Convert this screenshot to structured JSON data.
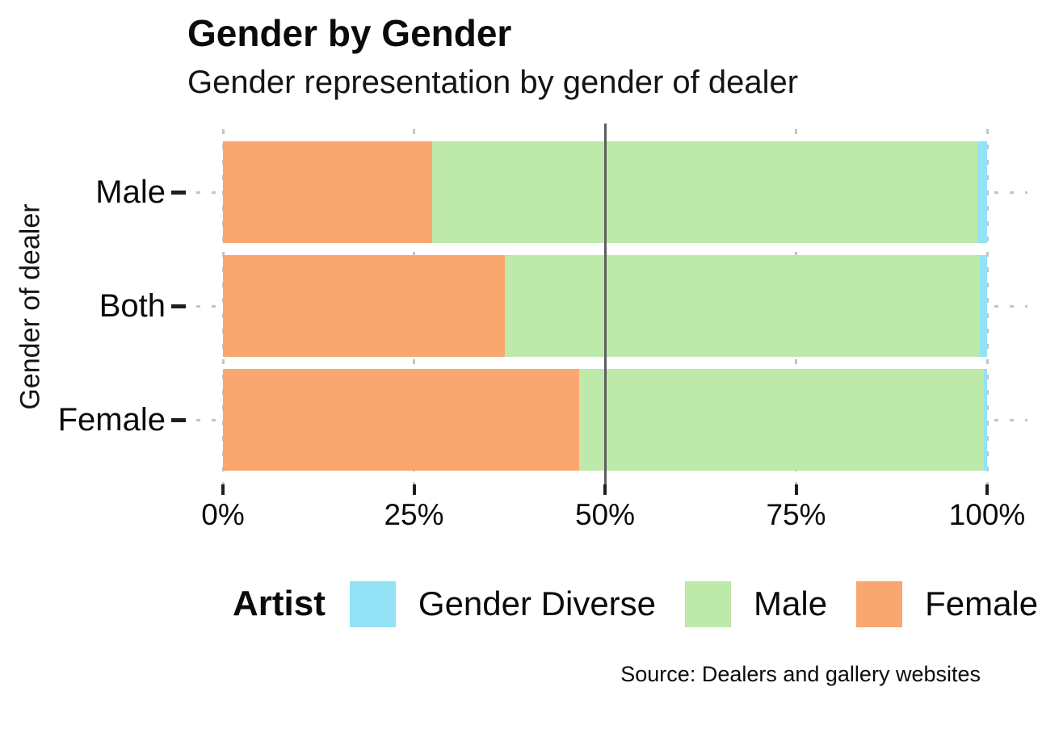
{
  "chart_data": {
    "type": "bar",
    "orientation": "horizontal-stacked",
    "title": "Gender by Gender",
    "subtitle": "Gender representation by gender of dealer",
    "ylabel": "Gender of dealer",
    "xlabel": "",
    "categories": [
      "Male",
      "Both",
      "Female"
    ],
    "series": [
      {
        "name": "Female",
        "color": "#F9A76E",
        "values": [
          27.4,
          36.9,
          46.6
        ]
      },
      {
        "name": "Male",
        "color": "#BDE9AB",
        "values": [
          71.3,
          62.2,
          53.0
        ]
      },
      {
        "name": "Gender Diverse",
        "color": "#93E2F5",
        "values": [
          1.3,
          0.9,
          0.4
        ]
      }
    ],
    "x_ticks": [
      {
        "value": 0,
        "label": "0%"
      },
      {
        "value": 25,
        "label": "25%"
      },
      {
        "value": 50,
        "label": "50%"
      },
      {
        "value": 75,
        "label": "75%"
      },
      {
        "value": 100,
        "label": "100%"
      }
    ],
    "xlim": [
      0,
      100
    ],
    "reference_line_x": 50,
    "grid": "dotted",
    "legend": {
      "title": "Artist",
      "position": "bottom",
      "entries": [
        {
          "label": "Gender Diverse",
          "color": "#93E2F5"
        },
        {
          "label": "Male",
          "color": "#BDE9AB"
        },
        {
          "label": "Female",
          "color": "#F9A76E"
        }
      ]
    }
  },
  "footer": {
    "source": "Source: Dealers and gallery websites"
  }
}
